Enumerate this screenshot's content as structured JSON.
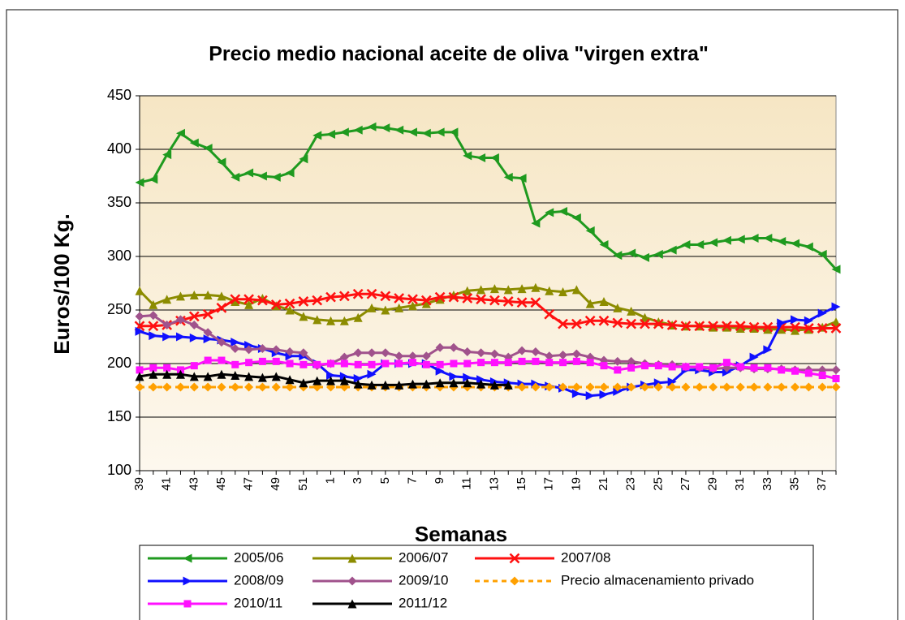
{
  "chart_data": {
    "type": "line",
    "title": "Precio medio nacional aceite de oliva \"virgen extra\"",
    "y_label": "Euros/100 Kg.",
    "x_label": "Semanas",
    "categories": [
      "39",
      null,
      "41",
      null,
      "43",
      null,
      "45",
      null,
      "47",
      null,
      "49",
      null,
      "51",
      null,
      "1",
      null,
      "3",
      null,
      "5",
      null,
      "7",
      null,
      "9",
      null,
      "11",
      null,
      "13",
      null,
      "15",
      null,
      "17",
      null,
      "19",
      null,
      "21",
      null,
      "23",
      null,
      "25",
      null,
      "27",
      null,
      "29",
      null,
      "31",
      null,
      "33",
      null,
      "35",
      null,
      "37",
      null
    ],
    "ylim": [
      100,
      450
    ],
    "yticks": [
      100,
      150,
      200,
      250,
      300,
      350,
      400,
      450
    ],
    "grid": true,
    "legend": "bottom",
    "series": [
      {
        "name": "2005/06",
        "color": "#1f9a1f",
        "marker": "triangle-left",
        "values": [
          369,
          372,
          395,
          415,
          406,
          401,
          388,
          374,
          378,
          375,
          374,
          378,
          391,
          413,
          414,
          416,
          418,
          421,
          420,
          418,
          416,
          415,
          416,
          416,
          394,
          392,
          392,
          374,
          373,
          331,
          341,
          342,
          336,
          324,
          311,
          301,
          303,
          299,
          302,
          306,
          311,
          311,
          313,
          315,
          316,
          317,
          317,
          314,
          312,
          309,
          302,
          288
        ]
      },
      {
        "name": "2006/07",
        "color": "#8c8c00",
        "marker": "triangle-up",
        "values": [
          268,
          255,
          260,
          263,
          264,
          264,
          263,
          258,
          255,
          261,
          254,
          250,
          244,
          241,
          240,
          240,
          243,
          252,
          250,
          252,
          254,
          256,
          260,
          264,
          268,
          269,
          270,
          269,
          270,
          271,
          268,
          267,
          269,
          256,
          258,
          252,
          249,
          243,
          239,
          236,
          235,
          235,
          234,
          234,
          233,
          233,
          232,
          232,
          231,
          232,
          234,
          239
        ]
      },
      {
        "name": "2007/08",
        "color": "#ff1010",
        "marker": "x",
        "values": [
          235,
          235,
          236,
          240,
          244,
          246,
          252,
          260,
          260,
          259,
          255,
          256,
          258,
          259,
          262,
          263,
          265,
          265,
          263,
          261,
          260,
          259,
          262,
          262,
          261,
          260,
          259,
          258,
          257,
          257,
          246,
          237,
          237,
          240,
          240,
          238,
          237,
          237,
          237,
          236,
          235,
          235,
          235,
          235,
          235,
          234,
          234,
          234,
          234,
          233,
          233,
          233
        ]
      },
      {
        "name": "2008/09",
        "color": "#1010ff",
        "marker": "triangle-right",
        "values": [
          230,
          226,
          225,
          225,
          224,
          223,
          222,
          220,
          217,
          214,
          210,
          207,
          207,
          200,
          189,
          188,
          186,
          190,
          200,
          200,
          200,
          200,
          193,
          188,
          187,
          185,
          183,
          182,
          181,
          181,
          179,
          177,
          172,
          170,
          171,
          174,
          178,
          180,
          182,
          183,
          194,
          194,
          192,
          192,
          198,
          206,
          213,
          238,
          241,
          240,
          247,
          253
        ]
      },
      {
        "name": "2009/10",
        "color": "#a0528c",
        "marker": "diamond",
        "values": [
          244,
          245,
          236,
          241,
          236,
          229,
          220,
          214,
          213,
          214,
          213,
          211,
          210,
          198,
          200,
          206,
          210,
          210,
          210,
          207,
          207,
          207,
          215,
          215,
          211,
          210,
          209,
          206,
          212,
          211,
          207,
          208,
          209,
          206,
          203,
          202,
          202,
          200,
          199,
          199,
          197,
          196,
          195,
          196,
          196,
          195,
          195,
          195,
          194,
          194,
          194,
          194
        ]
      },
      {
        "name": "Precio almacenamiento privado",
        "color": "#ffa000",
        "marker": "diamond",
        "dashed": true,
        "values": [
          178,
          178,
          178,
          178,
          178,
          178,
          178,
          178,
          178,
          178,
          178,
          178,
          178,
          178,
          178,
          178,
          178,
          178,
          178,
          178,
          178,
          178,
          178,
          178,
          178,
          178,
          178,
          178,
          178,
          178,
          178,
          178,
          178,
          178,
          178,
          178,
          178,
          178,
          178,
          178,
          178,
          178,
          178,
          178,
          178,
          178,
          178,
          178,
          178,
          178,
          178,
          178
        ]
      },
      {
        "name": "2010/11",
        "color": "#ff10ff",
        "marker": "square",
        "values": [
          194,
          196,
          196,
          194,
          198,
          203,
          203,
          199,
          201,
          202,
          202,
          200,
          199,
          199,
          200,
          200,
          199,
          199,
          200,
          200,
          201,
          199,
          199,
          200,
          200,
          201,
          201,
          201,
          202,
          202,
          201,
          201,
          202,
          201,
          198,
          194,
          196,
          198,
          198,
          197,
          197,
          197,
          196,
          201,
          197,
          196,
          196,
          194,
          193,
          191,
          189,
          186
        ]
      },
      {
        "name": "2011/12",
        "color": "#000000",
        "marker": "triangle-up",
        "values": [
          188,
          190,
          190,
          190,
          188,
          188,
          190,
          189,
          188,
          187,
          188,
          185,
          182,
          184,
          184,
          184,
          181,
          180,
          180,
          180,
          181,
          181,
          182,
          182,
          182,
          181,
          180,
          180,
          null,
          null,
          null,
          null,
          null,
          null,
          null,
          null,
          null,
          null,
          null,
          null,
          null,
          null,
          null,
          null,
          null,
          null,
          null,
          null,
          null,
          null,
          null,
          null
        ]
      }
    ]
  }
}
